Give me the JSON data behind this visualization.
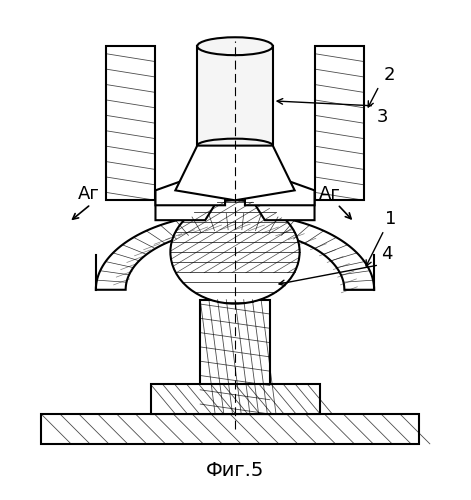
{
  "title": "Фиг.5",
  "label_2": "2",
  "label_3": "3",
  "label_1": "1",
  "label_4": "4",
  "ar_left": "Аг",
  "ar_right": "Аг",
  "bg_color": "#ffffff",
  "line_color": "#000000",
  "hatch_color": "#000000",
  "fig_width": 4.71,
  "fig_height": 5.0
}
